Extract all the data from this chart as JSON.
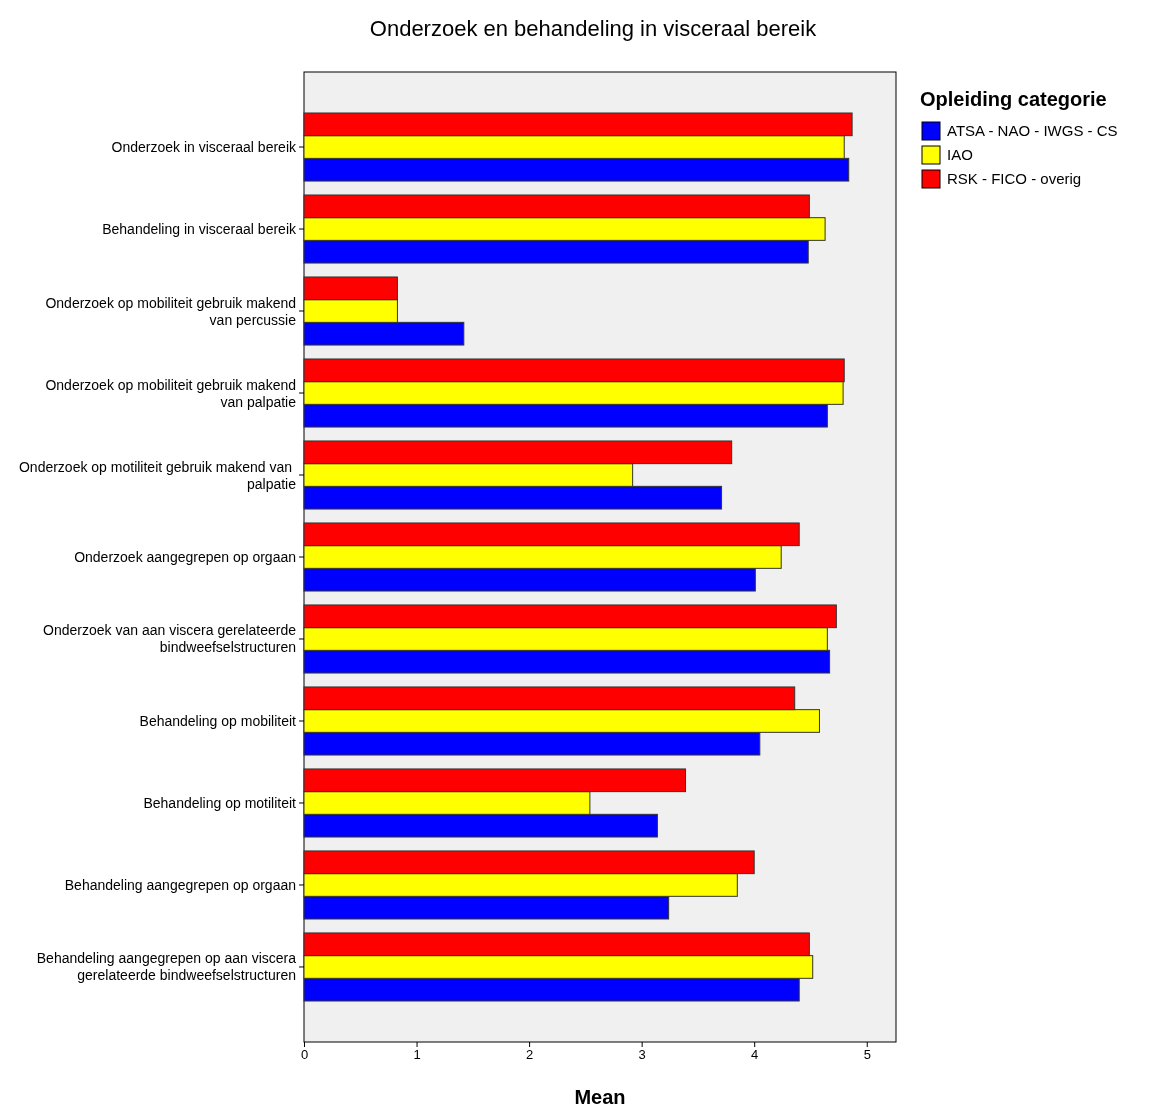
{
  "chart_data": {
    "type": "bar",
    "orientation": "horizontal",
    "title": "Onderzoek en behandeling in visceraal bereik",
    "xlabel": "Mean",
    "legend_title": "Opleiding categorie",
    "legend": "top right",
    "grid": false,
    "categories": [
      "Onderzoek in visceraal bereik",
      "Behandeling in visceraal bereik",
      "Onderzoek op mobiliteit gebruik makend van percussie",
      "Onderzoek op mobiliteit gebruik makend van palpatie",
      "Onderzoek op motiliteit gebruik makend van  palpatie",
      "Onderzoek aangegrepen op orgaan",
      "Onderzoek van aan viscera gerelateerde bindweefselstructuren",
      "Behandeling op mobiliteit",
      "Behandeling op motiliteit",
      "Behandeling aangegrepen op orgaan",
      "Behandeling aangegrepen op aan viscera gerelateerde bindweefselstructuren"
    ],
    "xlim": [
      0,
      5.26
    ],
    "xticks": [
      0,
      1,
      2,
      3,
      4,
      5
    ],
    "series": [
      {
        "name": "ATSA - NAO - IWGS - CS",
        "color": "#0000ff",
        "values": [
          4.84,
          4.48,
          1.42,
          4.65,
          3.71,
          4.01,
          4.67,
          4.05,
          3.14,
          3.24,
          4.4
        ]
      },
      {
        "name": "IAO",
        "color": "#ffff00",
        "values": [
          4.8,
          4.63,
          0.83,
          4.79,
          2.92,
          4.24,
          4.65,
          4.58,
          2.54,
          3.85,
          4.52
        ]
      },
      {
        "name": "RSK - FICO - overig",
        "color": "#ff0000",
        "values": [
          4.87,
          4.49,
          0.83,
          4.8,
          3.8,
          4.4,
          4.73,
          4.36,
          3.39,
          4.0,
          4.49
        ]
      }
    ]
  }
}
